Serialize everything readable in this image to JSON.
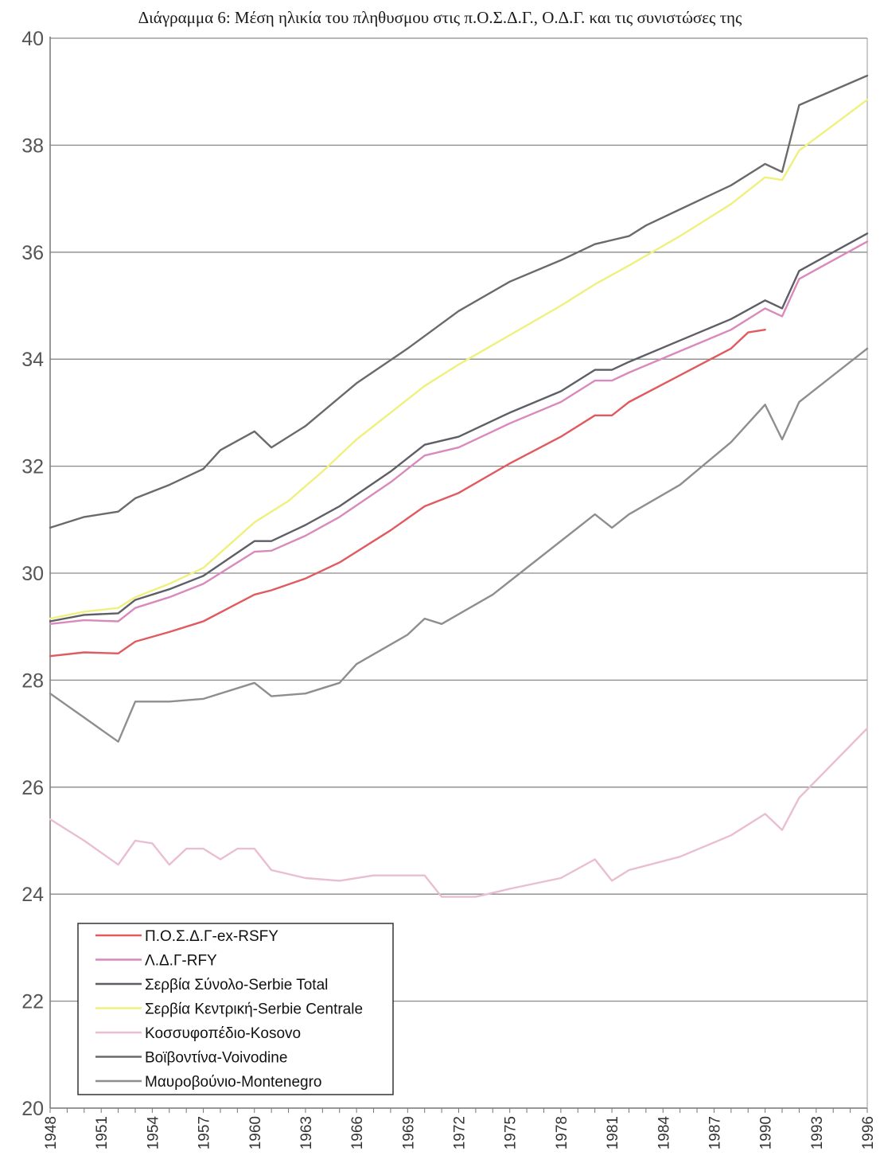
{
  "chart_data": {
    "type": "line",
    "title": "Διάγραμμα 6: Μέση ηλικία του πληθυσμου  στις π.Ο.Σ.Δ.Γ., Ο.Δ.Γ. και τις συνιστώσες της",
    "xlabel": "",
    "ylabel": "",
    "xlim": [
      1948,
      1996
    ],
    "ylim": [
      20,
      40
    ],
    "yticks": [
      "20",
      "22",
      "24",
      "26",
      "28",
      "30",
      "32",
      "34",
      "36",
      "38",
      "40"
    ],
    "xticks": [
      "1948",
      "1951",
      "1954",
      "1957",
      "1960",
      "1963",
      "1966",
      "1969",
      "1972",
      "1975",
      "1978",
      "1981",
      "1984",
      "1987",
      "1990",
      "1993",
      "1996"
    ],
    "grid": true,
    "legend_position": "bottom-left",
    "series": [
      {
        "name": "Π.Ο.Σ.Δ.Γ-ex-RSFY",
        "color": "#e05a5f",
        "points": [
          [
            1948,
            28.45
          ],
          [
            1950,
            28.52
          ],
          [
            1952,
            28.5
          ],
          [
            1953,
            28.72
          ],
          [
            1955,
            28.9
          ],
          [
            1957,
            29.1
          ],
          [
            1960,
            29.6
          ],
          [
            1961,
            29.68
          ],
          [
            1963,
            29.9
          ],
          [
            1965,
            30.2
          ],
          [
            1968,
            30.8
          ],
          [
            1970,
            31.25
          ],
          [
            1972,
            31.5
          ],
          [
            1975,
            32.05
          ],
          [
            1978,
            32.55
          ],
          [
            1980,
            32.95
          ],
          [
            1981,
            32.95
          ],
          [
            1982,
            33.2
          ],
          [
            1985,
            33.7
          ],
          [
            1988,
            34.2
          ],
          [
            1989,
            34.5
          ],
          [
            1990,
            34.55
          ]
        ]
      },
      {
        "name": "Λ.Δ.Γ-RFY",
        "color": "#d989bb",
        "points": [
          [
            1948,
            29.05
          ],
          [
            1950,
            29.12
          ],
          [
            1952,
            29.1
          ],
          [
            1953,
            29.35
          ],
          [
            1955,
            29.55
          ],
          [
            1957,
            29.8
          ],
          [
            1960,
            30.4
          ],
          [
            1961,
            30.42
          ],
          [
            1963,
            30.7
          ],
          [
            1965,
            31.05
          ],
          [
            1968,
            31.7
          ],
          [
            1970,
            32.2
          ],
          [
            1972,
            32.35
          ],
          [
            1975,
            32.8
          ],
          [
            1978,
            33.2
          ],
          [
            1980,
            33.6
          ],
          [
            1981,
            33.6
          ],
          [
            1982,
            33.75
          ],
          [
            1985,
            34.15
          ],
          [
            1988,
            34.55
          ],
          [
            1990,
            34.95
          ],
          [
            1991,
            34.8
          ],
          [
            1992,
            35.5
          ],
          [
            1996,
            36.2
          ]
        ]
      },
      {
        "name": "Σερβία Σύνολο-Serbie Total",
        "color": "#5e5e66",
        "points": [
          [
            1948,
            29.1
          ],
          [
            1950,
            29.22
          ],
          [
            1952,
            29.25
          ],
          [
            1953,
            29.5
          ],
          [
            1955,
            29.7
          ],
          [
            1957,
            29.95
          ],
          [
            1960,
            30.6
          ],
          [
            1961,
            30.6
          ],
          [
            1963,
            30.9
          ],
          [
            1965,
            31.25
          ],
          [
            1968,
            31.9
          ],
          [
            1970,
            32.4
          ],
          [
            1972,
            32.55
          ],
          [
            1975,
            33.0
          ],
          [
            1978,
            33.4
          ],
          [
            1980,
            33.8
          ],
          [
            1981,
            33.8
          ],
          [
            1982,
            33.95
          ],
          [
            1985,
            34.35
          ],
          [
            1988,
            34.75
          ],
          [
            1990,
            35.1
          ],
          [
            1991,
            34.95
          ],
          [
            1992,
            35.65
          ],
          [
            1996,
            36.35
          ]
        ]
      },
      {
        "name": "Σερβία Κεντρική-Serbie Centrale",
        "color": "#f0f07e",
        "points": [
          [
            1948,
            29.15
          ],
          [
            1950,
            29.28
          ],
          [
            1952,
            29.35
          ],
          [
            1953,
            29.55
          ],
          [
            1955,
            29.8
          ],
          [
            1957,
            30.1
          ],
          [
            1960,
            30.95
          ],
          [
            1962,
            31.35
          ],
          [
            1964,
            31.9
          ],
          [
            1966,
            32.5
          ],
          [
            1968,
            33.0
          ],
          [
            1970,
            33.5
          ],
          [
            1972,
            33.9
          ],
          [
            1975,
            34.45
          ],
          [
            1978,
            35.0
          ],
          [
            1980,
            35.4
          ],
          [
            1982,
            35.75
          ],
          [
            1985,
            36.3
          ],
          [
            1988,
            36.9
          ],
          [
            1990,
            37.4
          ],
          [
            1991,
            37.35
          ],
          [
            1992,
            37.9
          ],
          [
            1996,
            38.85
          ]
        ]
      },
      {
        "name": "Κοσσυφοπέδιο-Kosovo",
        "color": "#e9bed2",
        "points": [
          [
            1948,
            25.4
          ],
          [
            1950,
            25.0
          ],
          [
            1952,
            24.55
          ],
          [
            1953,
            25.0
          ],
          [
            1954,
            24.95
          ],
          [
            1955,
            24.55
          ],
          [
            1956,
            24.85
          ],
          [
            1957,
            24.85
          ],
          [
            1958,
            24.65
          ],
          [
            1959,
            24.85
          ],
          [
            1960,
            24.85
          ],
          [
            1961,
            24.45
          ],
          [
            1963,
            24.3
          ],
          [
            1965,
            24.25
          ],
          [
            1967,
            24.35
          ],
          [
            1970,
            24.35
          ],
          [
            1971,
            23.95
          ],
          [
            1973,
            23.95
          ],
          [
            1975,
            24.1
          ],
          [
            1978,
            24.3
          ],
          [
            1980,
            24.65
          ],
          [
            1981,
            24.25
          ],
          [
            1982,
            24.45
          ],
          [
            1985,
            24.7
          ],
          [
            1988,
            25.1
          ],
          [
            1990,
            25.5
          ],
          [
            1991,
            25.2
          ],
          [
            1992,
            25.8
          ],
          [
            1996,
            27.1
          ]
        ]
      },
      {
        "name": "Βοϊβοντίνα-Voivodine",
        "color": "#6a6a6a",
        "points": [
          [
            1948,
            30.85
          ],
          [
            1950,
            31.05
          ],
          [
            1952,
            31.15
          ],
          [
            1953,
            31.4
          ],
          [
            1955,
            31.65
          ],
          [
            1957,
            31.95
          ],
          [
            1958,
            32.3
          ],
          [
            1960,
            32.65
          ],
          [
            1961,
            32.35
          ],
          [
            1963,
            32.75
          ],
          [
            1966,
            33.55
          ],
          [
            1969,
            34.2
          ],
          [
            1972,
            34.9
          ],
          [
            1975,
            35.45
          ],
          [
            1978,
            35.85
          ],
          [
            1980,
            36.15
          ],
          [
            1982,
            36.3
          ],
          [
            1983,
            36.5
          ],
          [
            1985,
            36.8
          ],
          [
            1988,
            37.25
          ],
          [
            1990,
            37.65
          ],
          [
            1991,
            37.5
          ],
          [
            1992,
            38.75
          ],
          [
            1996,
            39.3
          ]
        ]
      },
      {
        "name": "Μαυροβούνιο-Montenegro",
        "color": "#8e8e8e",
        "points": [
          [
            1948,
            27.75
          ],
          [
            1950,
            27.3
          ],
          [
            1952,
            26.85
          ],
          [
            1953,
            27.6
          ],
          [
            1955,
            27.6
          ],
          [
            1957,
            27.65
          ],
          [
            1960,
            27.95
          ],
          [
            1961,
            27.7
          ],
          [
            1963,
            27.75
          ],
          [
            1965,
            27.95
          ],
          [
            1966,
            28.3
          ],
          [
            1969,
            28.85
          ],
          [
            1970,
            29.15
          ],
          [
            1971,
            29.05
          ],
          [
            1974,
            29.6
          ],
          [
            1977,
            30.35
          ],
          [
            1980,
            31.1
          ],
          [
            1981,
            30.85
          ],
          [
            1982,
            31.1
          ],
          [
            1985,
            31.65
          ],
          [
            1988,
            32.45
          ],
          [
            1990,
            33.15
          ],
          [
            1991,
            32.5
          ],
          [
            1992,
            33.2
          ],
          [
            1996,
            34.2
          ]
        ]
      }
    ]
  }
}
